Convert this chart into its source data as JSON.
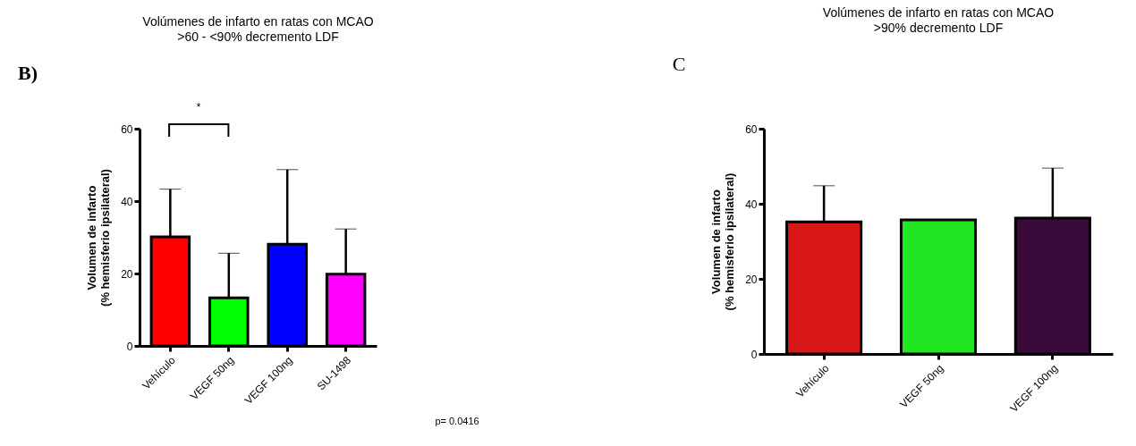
{
  "chart_data": [
    {
      "type": "bar",
      "title": "Volúmenes de infarto en ratas con MCAO",
      "subtitle": ">60 - <90% decremento LDF",
      "ylabel": "Volumen de infarto\n(% hemisferio ipsilateral)",
      "categories": [
        "Vehículo",
        "VEGF 50ng",
        "VEGF 100ng",
        "SU-1498"
      ],
      "values": [
        30.1,
        13.3,
        28.1,
        19.8
      ],
      "colors": [
        "#ff0000",
        "#00ff00",
        "#0000ff",
        "#ff00ff"
      ],
      "errors": [
        [
          30.1,
          43.3
        ],
        [
          13.3,
          25.6
        ],
        [
          28.1,
          48.7
        ],
        [
          19.8,
          32.3
        ]
      ],
      "ylim": [
        0,
        60
      ],
      "yticks": [
        0,
        20,
        40,
        60
      ],
      "grid": false,
      "legend": false,
      "annotations": [
        "B)",
        "*",
        "p= 0.0416"
      ]
    },
    {
      "type": "bar",
      "title": "Volúmenes de infarto en ratas con MCAO",
      "subtitle": ">90% decremento LDF",
      "ylabel": "Volumen de infarto\n(% hemisferio ipsilateral)",
      "categories": [
        "Vehículo",
        "VEGF 50ng",
        "VEGF 100ng"
      ],
      "values": [
        35.2,
        35.7,
        36.2
      ],
      "colors": [
        "#d81818",
        "#22e622",
        "#3a0a3a"
      ],
      "errors": [
        [
          35.2,
          44.8
        ],
        null,
        [
          36.2,
          49.5
        ]
      ],
      "ylim": [
        0,
        60
      ],
      "yticks": [
        0,
        20,
        40,
        60
      ],
      "grid": false,
      "legend": false,
      "annotations": [
        "C"
      ]
    }
  ]
}
